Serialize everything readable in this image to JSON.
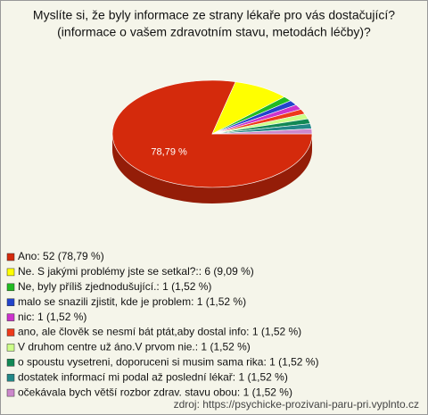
{
  "chart_data": {
    "type": "pie3d",
    "title": "Myslíte si, že byly informace ze strany lékaře pro vás dostačující?",
    "subtitle": "(informace o vašem zdravotním stavu, metodách léčby)?",
    "categories": [
      "Ano: 52 (78,79 %)",
      "Ne. S jakými problémy jste se setkal?:: 6 (9,09 %)",
      "Ne, byly příliš zjednodušující.: 1 (1,52 %)",
      "malo se snazili zjistit, kde je problem: 1 (1,52 %)",
      "nic: 1 (1,52 %)",
      "ano, ale člověk se nesmí bát ptát,aby dostal info: 1 (1,52 %)",
      "V druhom centre už áno.V prvom nie.: 1 (1,52 %)",
      "o spoustu vysetreni, doporuceni si musim sama rika: 1 (1,52 %)",
      "dostatek informací mi podal až poslední lékař: 1 (1,52 %)",
      "očekávala bych větší rozbor zdrav. stavu obou: 1 (1,52 %)"
    ],
    "values": [
      78.79,
      9.09,
      1.52,
      1.52,
      1.52,
      1.52,
      1.52,
      1.52,
      1.52,
      1.52
    ],
    "value_labels": [
      "78,79 %",
      null,
      null,
      null,
      null,
      null,
      null,
      null,
      null,
      null
    ],
    "colors": [
      "#d42a0c",
      "#ffff00",
      "#22bb22",
      "#2244cc",
      "#cc33cc",
      "#ee3a1a",
      "#ccff88",
      "#118855",
      "#228888",
      "#cc88cc"
    ],
    "source": "zdroj: https://psychicke-prozivani-paru-pri.vyplnto.cz"
  }
}
